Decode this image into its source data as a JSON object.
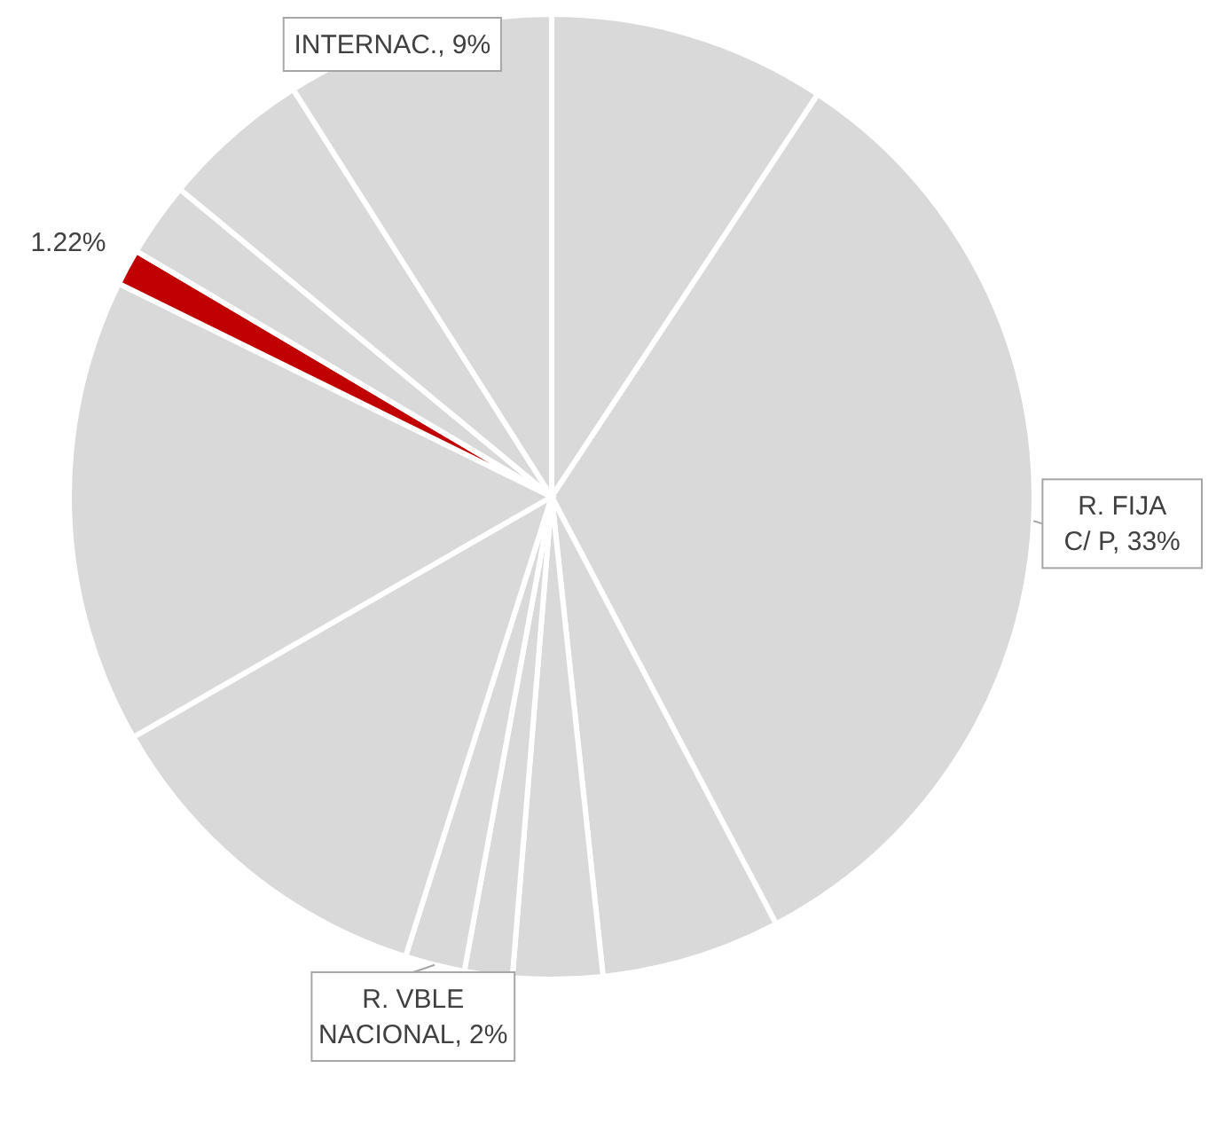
{
  "chart_data": {
    "type": "pie",
    "categories": [
      null,
      "R. FIJA C/ P",
      null,
      null,
      null,
      "R. VBLE NACIONAL",
      null,
      null,
      null,
      null,
      null,
      "INTERNAC."
    ],
    "values": [
      9.3,
      33,
      6,
      3,
      1.6,
      2,
      11.8,
      15.58,
      1.22,
      2.5,
      5,
      9
    ],
    "value_labels": [
      null,
      "33%",
      null,
      null,
      null,
      "2%",
      null,
      null,
      "1.22%",
      null,
      null,
      "9%"
    ],
    "colors": [
      "#d9d9d9",
      "#d9d9d9",
      "#d9d9d9",
      "#d9d9d9",
      "#d9d9d9",
      "#d9d9d9",
      "#d9d9d9",
      "#d9d9d9",
      "#c00000",
      "#d9d9d9",
      "#d9d9d9",
      "#d9d9d9"
    ]
  }
}
